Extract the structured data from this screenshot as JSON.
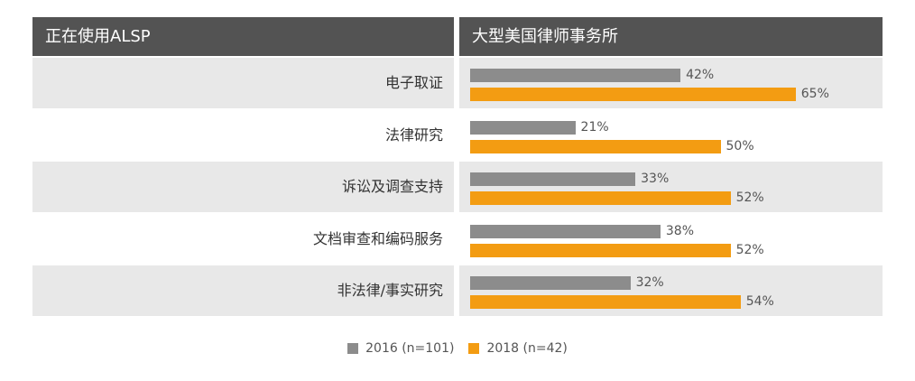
{
  "header": {
    "left": "正在使用ALSP",
    "right": "大型美国律师事务所"
  },
  "colors": {
    "s2016": "#8c8c8c",
    "s2018": "#f39c12",
    "header_bg": "#535353",
    "row_shade": "#e8e8e8"
  },
  "chart_data": {
    "type": "bar",
    "orientation": "horizontal",
    "categories": [
      "电子取证",
      "法律研究",
      "诉讼及调查支持",
      "文档审查和编码服务",
      "非法律/事实研究"
    ],
    "series": [
      {
        "name": "2016 (n=101)",
        "values": [
          42,
          21,
          33,
          38,
          32
        ]
      },
      {
        "name": "2018 (n=42)",
        "values": [
          65,
          50,
          52,
          52,
          54
        ]
      }
    ],
    "value_suffix": "%",
    "xlim": [
      0,
      100
    ],
    "grid": false,
    "legend_position": "bottom-center"
  }
}
